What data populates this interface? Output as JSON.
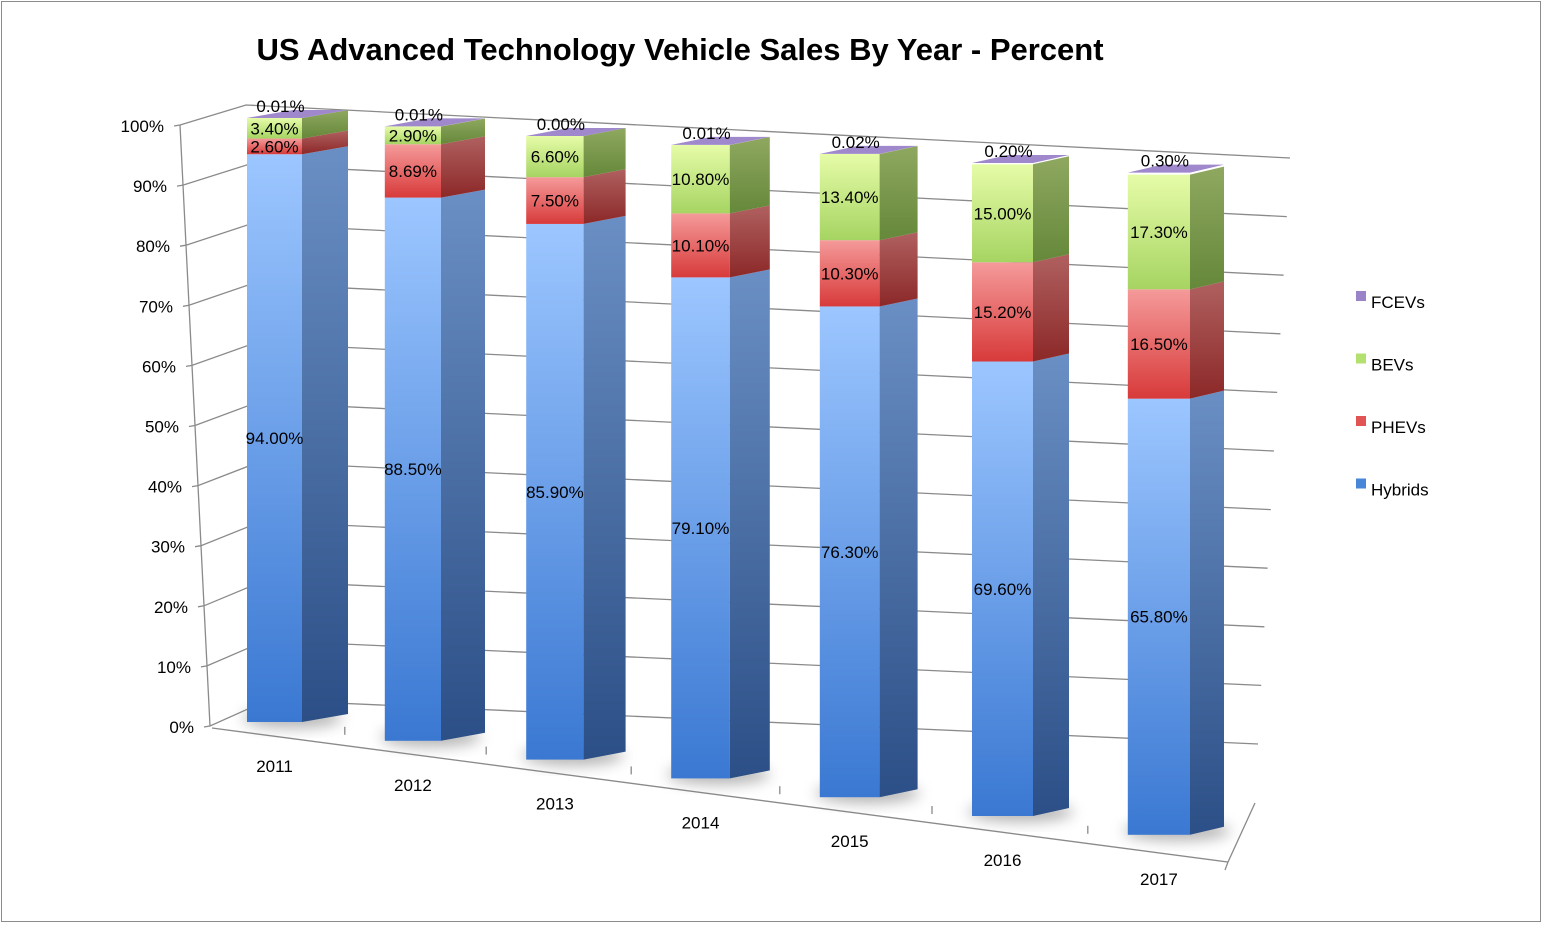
{
  "chart_data": {
    "type": "bar",
    "stacked": true,
    "three_d": true,
    "title": "US Advanced Technology Vehicle Sales By Year - Percent",
    "xlabel": "",
    "ylabel": "",
    "ylim": [
      0,
      100
    ],
    "y_ticks": [
      "0%",
      "10%",
      "20%",
      "30%",
      "40%",
      "50%",
      "60%",
      "70%",
      "80%",
      "90%",
      "100%"
    ],
    "grid": true,
    "legend_position": "right",
    "categories": [
      "2011",
      "2012",
      "2013",
      "2014",
      "2015",
      "2016",
      "2017"
    ],
    "series": [
      {
        "name": "Hybrids",
        "color": "#4a86d8",
        "values": [
          94.0,
          88.5,
          85.9,
          79.1,
          76.3,
          69.6,
          65.8
        ],
        "labels": [
          "94.00%",
          "88.50%",
          "85.90%",
          "79.10%",
          "76.30%",
          "69.60%",
          "65.80%"
        ]
      },
      {
        "name": "PHEVs",
        "color": "#e05454",
        "values": [
          2.6,
          8.69,
          7.5,
          10.1,
          10.3,
          15.2,
          16.5
        ],
        "labels": [
          "2.60%",
          "8.69%",
          "7.50%",
          "10.10%",
          "10.30%",
          "15.20%",
          "16.50%"
        ]
      },
      {
        "name": "BEVs",
        "color": "#b4e070",
        "values": [
          3.4,
          2.9,
          6.6,
          10.8,
          13.4,
          15.0,
          17.3
        ],
        "labels": [
          "3.40%",
          "2.90%",
          "6.60%",
          "10.80%",
          "13.40%",
          "15.00%",
          "17.30%"
        ]
      },
      {
        "name": "FCEVs",
        "color": "#9a84c8",
        "values": [
          0.01,
          0.01,
          0.0,
          0.01,
          0.02,
          0.2,
          0.3
        ],
        "labels": [
          "0.01%",
          "0.01%",
          "0.00%",
          "0.01%",
          "0.02%",
          "0.20%",
          "0.30%"
        ]
      }
    ],
    "legend_order": [
      "FCEVs",
      "BEVs",
      "PHEVs",
      "Hybrids"
    ]
  }
}
